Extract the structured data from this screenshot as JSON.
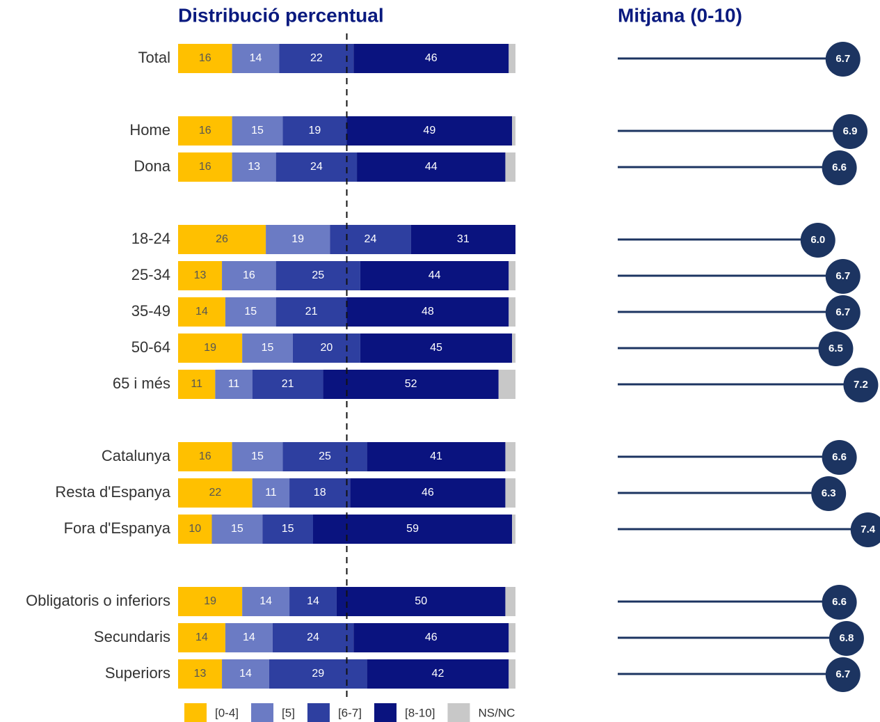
{
  "chart_data": [
    {
      "type": "stacked-bar",
      "title": "Distribució percentual",
      "categories": [
        "Total",
        null,
        "Home",
        "Dona",
        null,
        "18-24",
        "25-34",
        "35-49",
        "50-64",
        "65 i més",
        null,
        "Catalunya",
        "Resta d'Espanya",
        "Fora d'Espanya",
        null,
        "Obligatoris o inferiors",
        "Secundaris",
        "Superiors"
      ],
      "series": [
        {
          "name": "[0-4]",
          "color": "#FFC000",
          "label_color": "#555555",
          "values": [
            16,
            null,
            16,
            16,
            null,
            26,
            13,
            14,
            19,
            11,
            null,
            16,
            22,
            10,
            null,
            19,
            14,
            13
          ]
        },
        {
          "name": "[5]",
          "color": "#6B7BC4",
          "label_color": "#ffffff",
          "values": [
            14,
            null,
            15,
            13,
            null,
            19,
            16,
            15,
            15,
            11,
            null,
            15,
            11,
            15,
            null,
            14,
            14,
            14
          ]
        },
        {
          "name": "[6-7]",
          "color": "#2E3FA0",
          "label_color": "#ffffff",
          "values": [
            22,
            null,
            19,
            24,
            null,
            24,
            25,
            21,
            20,
            21,
            null,
            25,
            18,
            15,
            null,
            14,
            24,
            29
          ]
        },
        {
          "name": "[8-10]",
          "color": "#0A137F",
          "label_color": "#ffffff",
          "values": [
            46,
            null,
            49,
            44,
            null,
            31,
            44,
            48,
            45,
            52,
            null,
            41,
            46,
            59,
            null,
            50,
            46,
            42
          ]
        },
        {
          "name": "NS/NC",
          "color": "#C8C8C8",
          "label_color": null,
          "values": [
            2,
            null,
            1,
            3,
            null,
            0,
            2,
            2,
            1,
            5,
            null,
            3,
            3,
            1,
            null,
            3,
            2,
            2
          ]
        }
      ],
      "xlim": [
        0,
        100
      ],
      "reference_line": 50
    },
    {
      "type": "lollipop",
      "title": "Mitjana (0-10)",
      "color": "#1C3461",
      "values": [
        6.7,
        null,
        6.9,
        6.6,
        null,
        6.0,
        6.7,
        6.7,
        6.5,
        7.2,
        null,
        6.6,
        6.3,
        7.4,
        null,
        6.6,
        6.8,
        6.7
      ],
      "value_labels": [
        "6.7",
        null,
        "6.9",
        "6.6",
        null,
        "6.0",
        "6.7",
        "6.7",
        "6.5",
        "7.2",
        null,
        "6.6",
        "6.3",
        "7.4",
        null,
        "6.6",
        "6.8",
        "6.7"
      ],
      "xlim": [
        0.4,
        7.6
      ]
    }
  ]
}
